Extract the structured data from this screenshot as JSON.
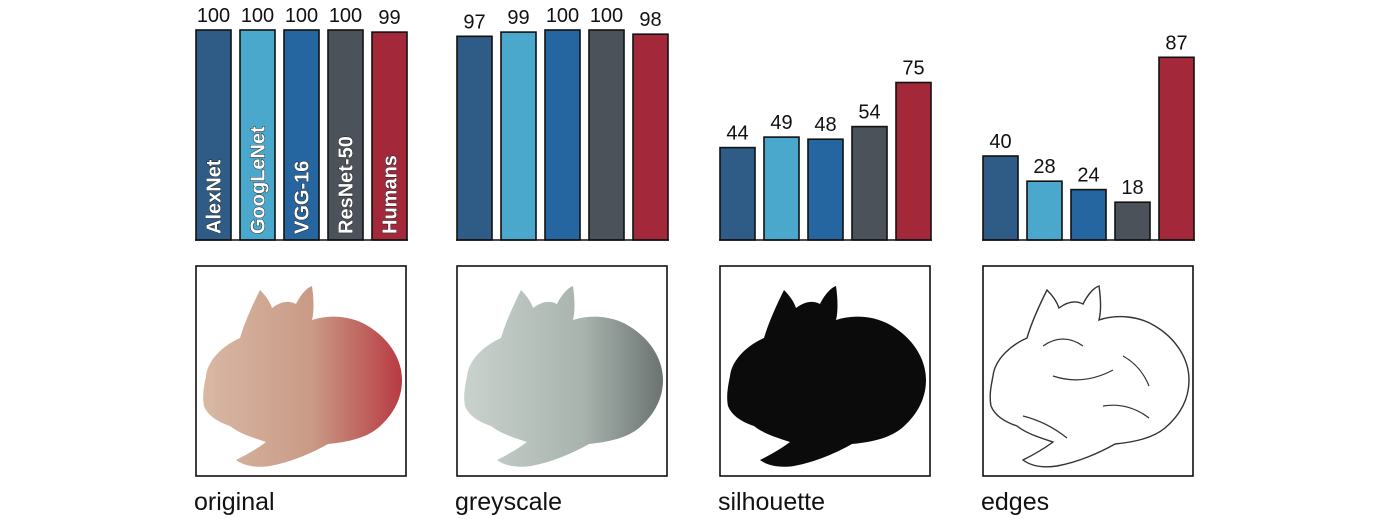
{
  "colors": {
    "AlexNet": "#2e5c87",
    "GoogLeNet": "#4aa8cc",
    "VGG-16": "#2565a0",
    "ResNet-50": "#4b5259",
    "Humans": "#a3293a",
    "axis": "#111111",
    "silhouette": "#0b0b0b",
    "edge_stroke": "#333333"
  },
  "chart_data": {
    "type": "bar",
    "series_names": [
      "AlexNet",
      "GoogLeNet",
      "VGG-16",
      "ResNet-50",
      "Humans"
    ],
    "ylim": [
      0,
      100
    ],
    "panels": [
      {
        "label": "original",
        "values": [
          100,
          100,
          100,
          100,
          99
        ]
      },
      {
        "label": "greyscale",
        "values": [
          97,
          99,
          100,
          100,
          98
        ]
      },
      {
        "label": "silhouette",
        "values": [
          44,
          49,
          48,
          54,
          75
        ]
      },
      {
        "label": "edges",
        "values": [
          40,
          28,
          24,
          18,
          87
        ]
      }
    ]
  }
}
